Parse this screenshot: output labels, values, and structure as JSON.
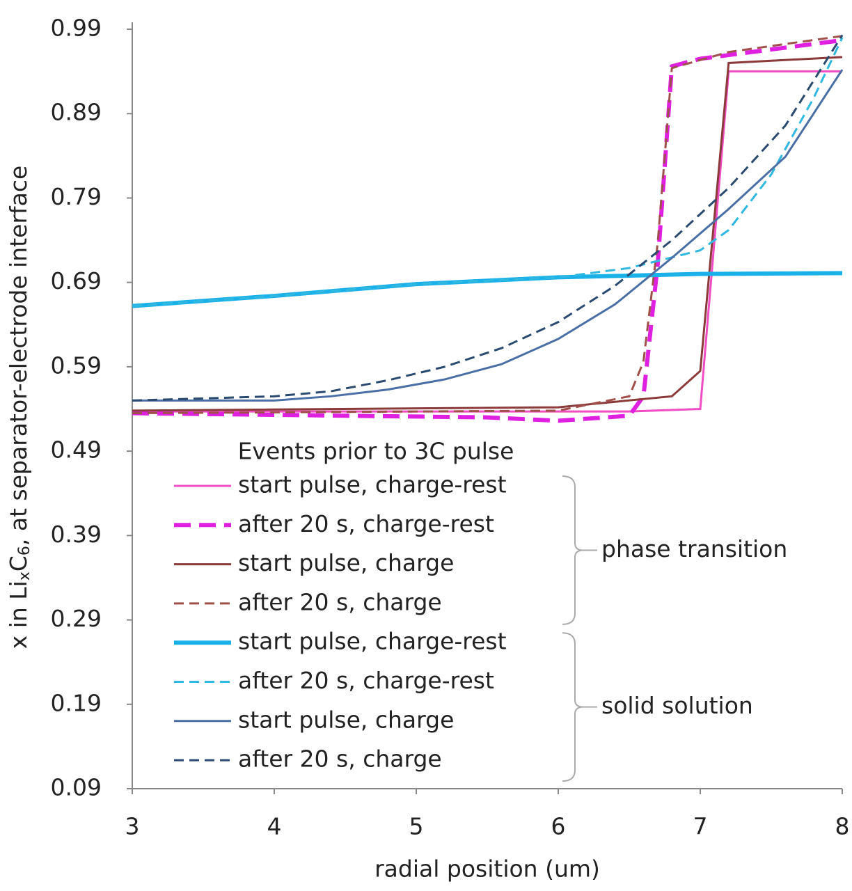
{
  "chart_data": {
    "type": "line",
    "y_label_parts": [
      "x in Li",
      "x",
      "C",
      "6",
      ", at separator-electrode interface"
    ],
    "x_label": "radial position (um)",
    "legend_title": "Events prior to 3C pulse",
    "xlim": [
      3,
      8
    ],
    "xticks": [
      3,
      4,
      5,
      6,
      7,
      8
    ],
    "ylim": [
      0.09,
      0.99
    ],
    "yticks": [
      0.09,
      0.19,
      0.29,
      0.39,
      0.49,
      0.59,
      0.69,
      0.79,
      0.89,
      0.99
    ],
    "series": [
      {
        "name": "start pulse, charge-rest",
        "group": "phase transition",
        "color": "#f04cc4",
        "style": "solid",
        "x": [
          3,
          4,
          5,
          6,
          6.5,
          7.0,
          7.2,
          8
        ],
        "values": [
          0.537,
          0.537,
          0.537,
          0.537,
          0.537,
          0.54,
          0.94,
          0.94
        ]
      },
      {
        "name": "after 20 s, charge-rest",
        "group": "phase transition",
        "color": "#e020e0",
        "style": "thick-dashed",
        "x": [
          3,
          5.5,
          6.0,
          6.5,
          6.6,
          6.7,
          6.8,
          7.0,
          8
        ],
        "values": [
          0.535,
          0.53,
          0.526,
          0.532,
          0.555,
          0.711,
          0.946,
          0.955,
          0.977
        ]
      },
      {
        "name": "start pulse, charge",
        "group": "phase transition",
        "color": "#8b3a3a",
        "style": "solid",
        "x": [
          3,
          6,
          6.8,
          7.0,
          7.2,
          8
        ],
        "values": [
          0.538,
          0.542,
          0.555,
          0.585,
          0.95,
          0.957
        ]
      },
      {
        "name": "after 20 s, charge",
        "group": "phase transition",
        "color": "#a0504a",
        "style": "dashed",
        "x": [
          3,
          6,
          6.5,
          6.6,
          6.7,
          6.8,
          7.2,
          8
        ],
        "values": [
          0.535,
          0.538,
          0.555,
          0.596,
          0.736,
          0.944,
          0.963,
          0.982
        ]
      },
      {
        "name": "start pulse, charge-rest",
        "group": "solid solution",
        "color": "#1ab0e8",
        "style": "thick",
        "x": [
          3,
          4,
          5,
          6,
          7,
          8
        ],
        "values": [
          0.662,
          0.674,
          0.688,
          0.696,
          0.7,
          0.701
        ]
      },
      {
        "name": "after 20 s, charge-rest",
        "group": "solid solution",
        "color": "#30b8e0",
        "style": "dashed",
        "x": [
          3,
          4,
          5,
          6,
          6.5,
          7,
          7.2,
          7.5,
          7.8,
          8
        ],
        "values": [
          0.662,
          0.674,
          0.688,
          0.696,
          0.707,
          0.728,
          0.752,
          0.818,
          0.909,
          0.98
        ]
      },
      {
        "name": "start pulse, charge",
        "group": "solid solution",
        "color": "#4a6fa5",
        "style": "solid",
        "x": [
          3,
          4,
          4.4,
          4.8,
          5.2,
          5.6,
          6,
          6.4,
          6.8,
          7.2,
          7.6,
          8
        ],
        "values": [
          0.55,
          0.55,
          0.555,
          0.563,
          0.575,
          0.593,
          0.623,
          0.664,
          0.719,
          0.777,
          0.839,
          0.942
        ]
      },
      {
        "name": "after 20 s, charge",
        "group": "solid solution",
        "color": "#2a4a70",
        "style": "dashed",
        "x": [
          3,
          4,
          4.4,
          4.8,
          5.2,
          5.6,
          6,
          6.4,
          6.8,
          7.2,
          7.6,
          8
        ],
        "values": [
          0.55,
          0.555,
          0.561,
          0.574,
          0.59,
          0.612,
          0.643,
          0.686,
          0.74,
          0.802,
          0.876,
          0.983
        ]
      }
    ]
  }
}
